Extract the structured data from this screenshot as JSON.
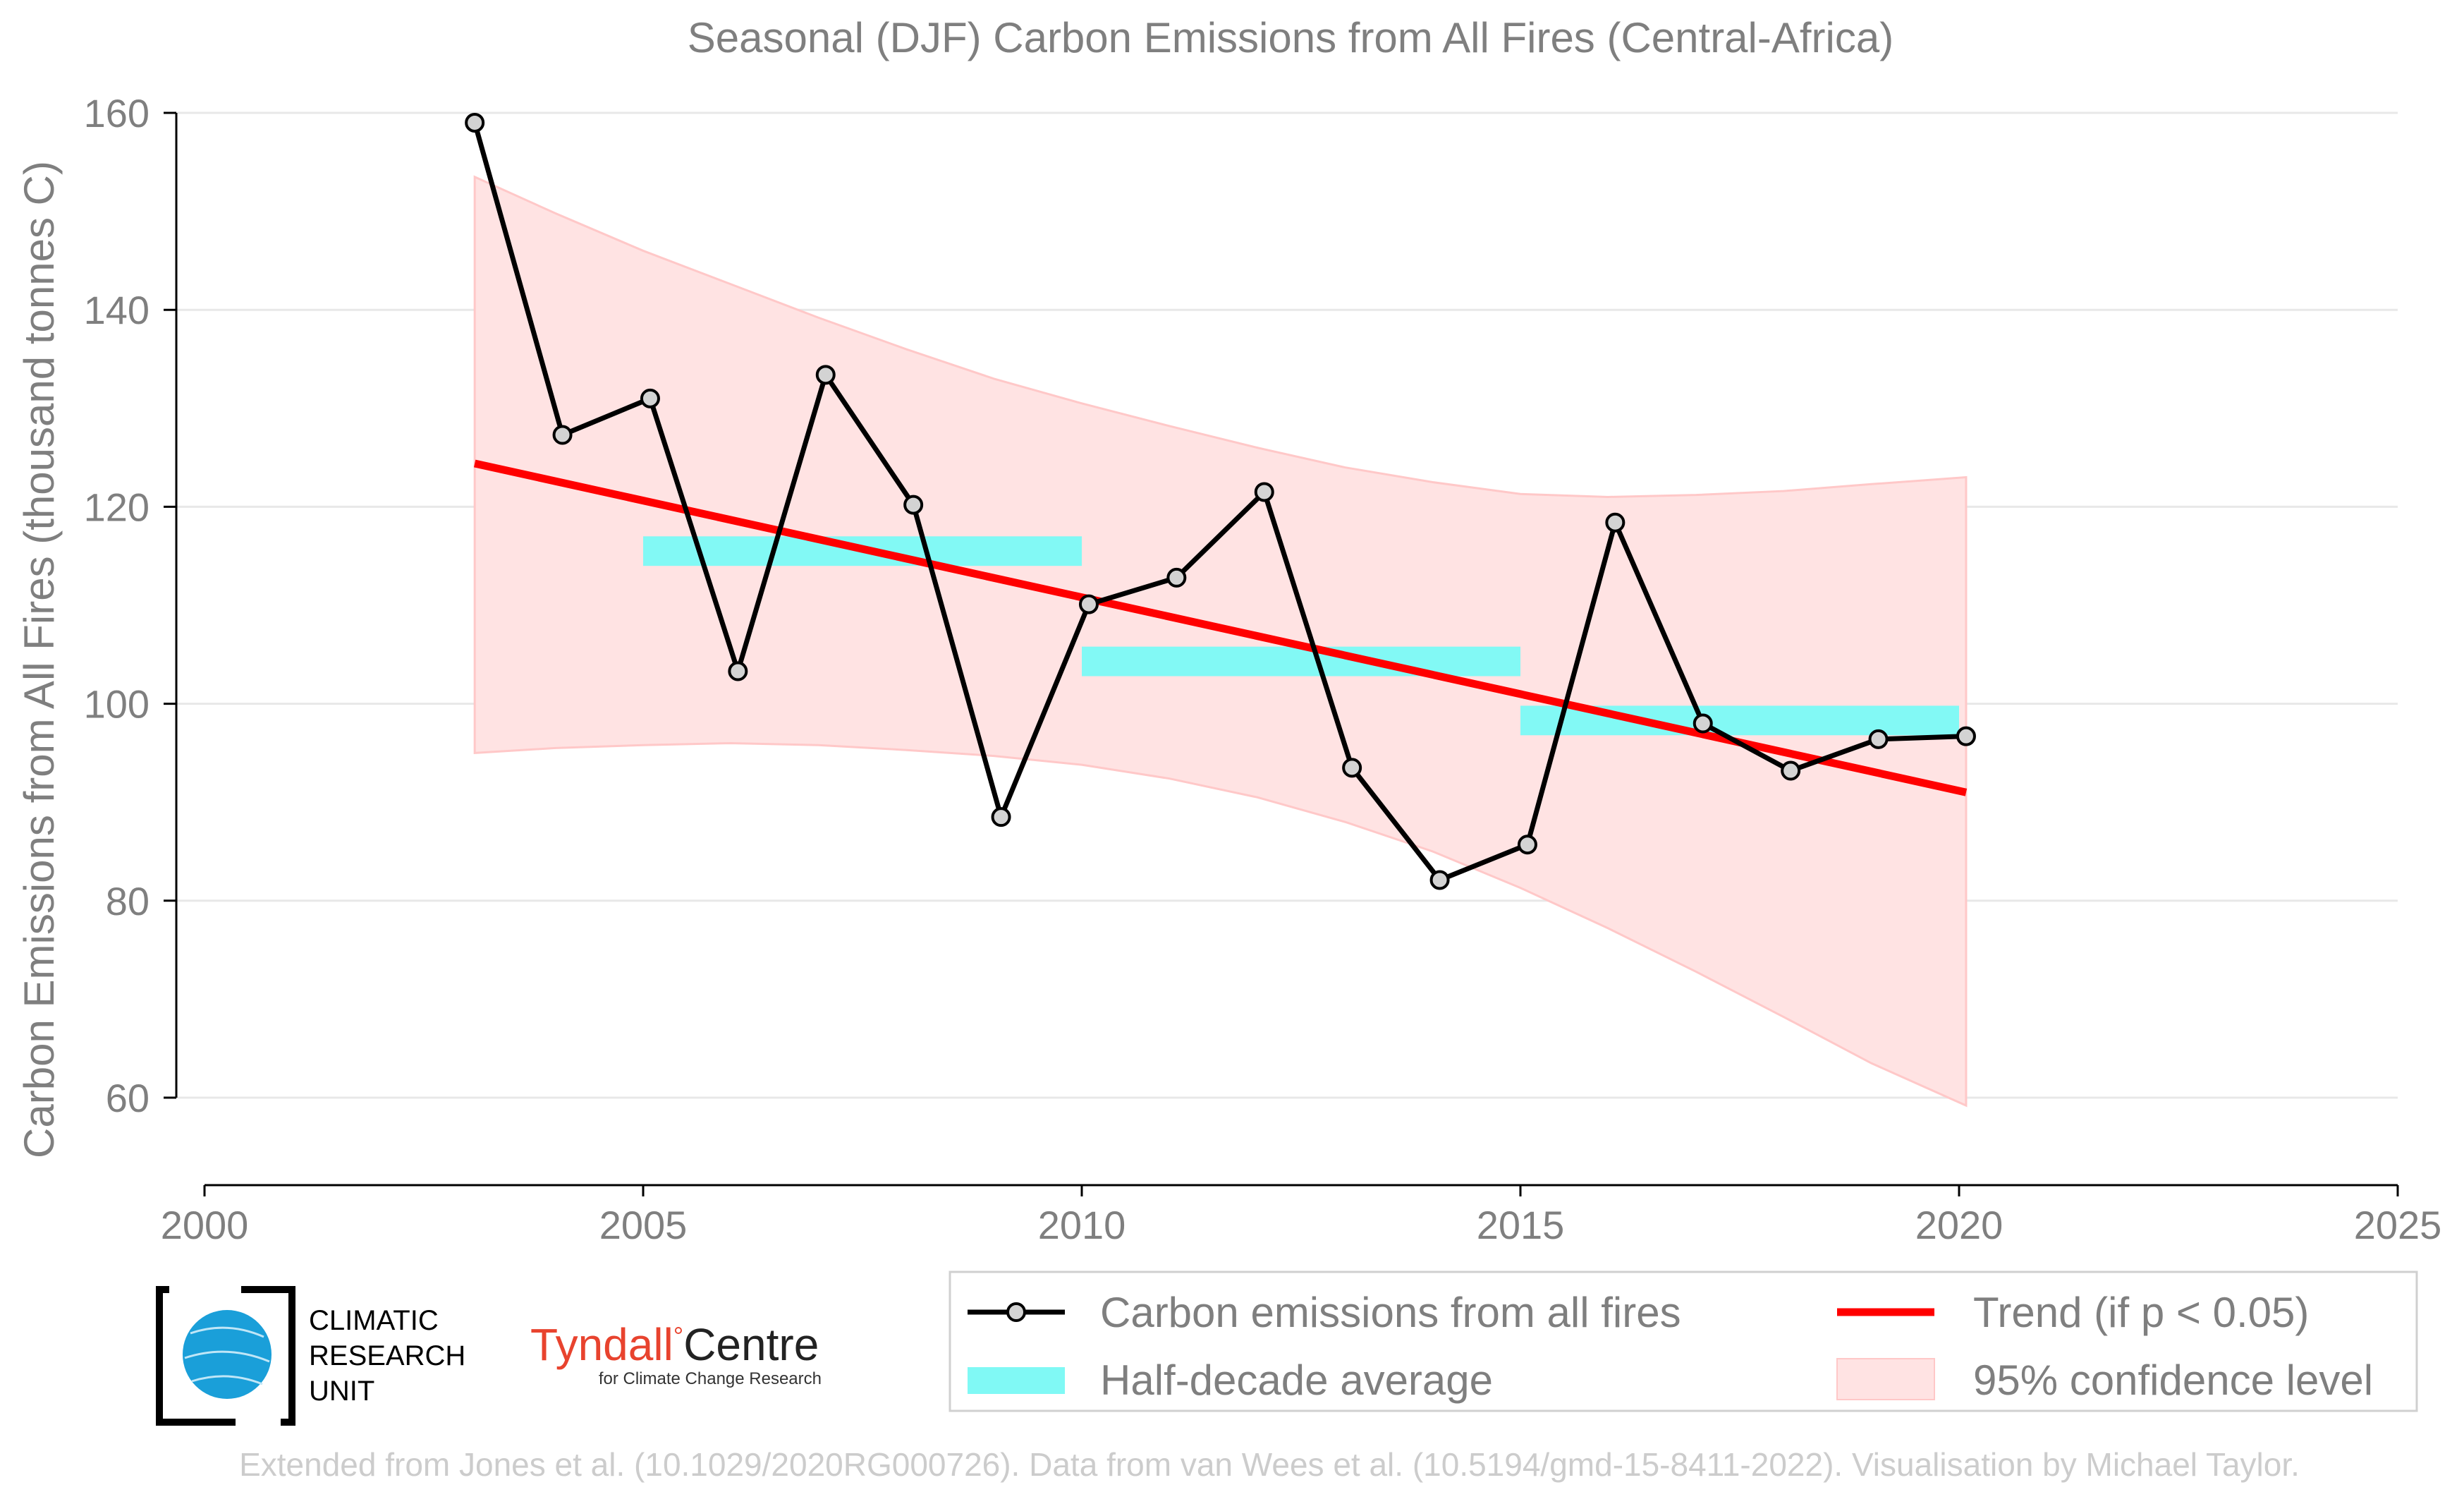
{
  "chart_data": {
    "type": "line",
    "title": "Seasonal (DJF) Carbon Emissions from All Fires (Central-Africa)",
    "ylabel": "Carbon Emissions from All Fires (thousand tonnes C)",
    "xlabel": "",
    "xlim": [
      2000,
      2025
    ],
    "ylim": [
      51,
      160
    ],
    "x_ticks": [
      2000,
      2005,
      2010,
      2015,
      2020,
      2025
    ],
    "y_ticks": [
      60,
      80,
      100,
      120,
      140,
      160
    ],
    "grid": "horizontal",
    "legend_position": "bottom-right",
    "series": [
      {
        "name": "Carbon emissions from all fires",
        "color": "#000000",
        "marker_fill": "#d3d3d3",
        "x": [
          2003.08,
          2004.08,
          2005.08,
          2006.08,
          2007.08,
          2008.08,
          2009.08,
          2010.08,
          2011.08,
          2012.08,
          2013.08,
          2014.08,
          2015.08,
          2016.08,
          2017.08,
          2018.08,
          2019.08,
          2020.08
        ],
        "y": [
          159.0,
          127.3,
          131.0,
          103.3,
          133.4,
          120.2,
          88.5,
          110.1,
          112.8,
          121.5,
          93.5,
          82.1,
          85.7,
          118.4,
          98.0,
          93.2,
          96.4,
          96.7
        ]
      }
    ],
    "half_decade_average": {
      "name": "Half-decade average",
      "color": "#80f9f5",
      "segments": [
        {
          "x_start": 2005,
          "x_end": 2010,
          "y_low": 114.0,
          "y_high": 117.0
        },
        {
          "x_start": 2010,
          "x_end": 2015,
          "y_low": 102.8,
          "y_high": 105.8
        },
        {
          "x_start": 2015,
          "x_end": 2020,
          "y_low": 96.8,
          "y_high": 99.8
        }
      ]
    },
    "trend": {
      "name": "Trend (if p < 0.05)",
      "color": "#ff0000",
      "x": [
        2003.08,
        2020.08
      ],
      "y": [
        124.4,
        91.0
      ]
    },
    "confidence_band": {
      "name": "95% confidence level",
      "color": "#ffcccc",
      "x": [
        2003.08,
        2004,
        2005,
        2006,
        2007,
        2008,
        2009,
        2010,
        2011,
        2012,
        2013,
        2014,
        2015,
        2016,
        2017,
        2018,
        2019,
        2020.08
      ],
      "upper": [
        153.5,
        149.8,
        146.0,
        142.6,
        139.2,
        136.0,
        133.0,
        130.5,
        128.2,
        126.0,
        124.0,
        122.5,
        121.3,
        121.0,
        121.2,
        121.6,
        122.3,
        123.0
      ],
      "lower": [
        95.0,
        95.5,
        95.8,
        96.0,
        95.8,
        95.3,
        94.7,
        93.8,
        92.4,
        90.5,
        88.0,
        85.0,
        81.3,
        77.2,
        72.8,
        68.2,
        63.5,
        59.2
      ]
    }
  },
  "legend": {
    "items": [
      {
        "key": "line",
        "label": "Carbon emissions from all fires"
      },
      {
        "key": "trend",
        "label": "Trend (if p < 0.05)"
      },
      {
        "key": "avg",
        "label": "Half-decade average"
      },
      {
        "key": "band",
        "label": "95% confidence level"
      }
    ]
  },
  "logos": {
    "cru": {
      "lines": [
        "CLIMATIC",
        "RESEARCH",
        "UNIT"
      ],
      "color": "#1a9fd9"
    },
    "tyndall": {
      "name_part1": "Tyndall",
      "degree": "°",
      "name_part2": "Centre",
      "tagline": "for Climate Change Research",
      "color": "#e8432e"
    }
  },
  "credit": "Extended from Jones et al. (10.1029/2020RG000726). Data from van Wees et al. (10.5194/gmd-15-8411-2022). Visualisation by Michael Taylor."
}
